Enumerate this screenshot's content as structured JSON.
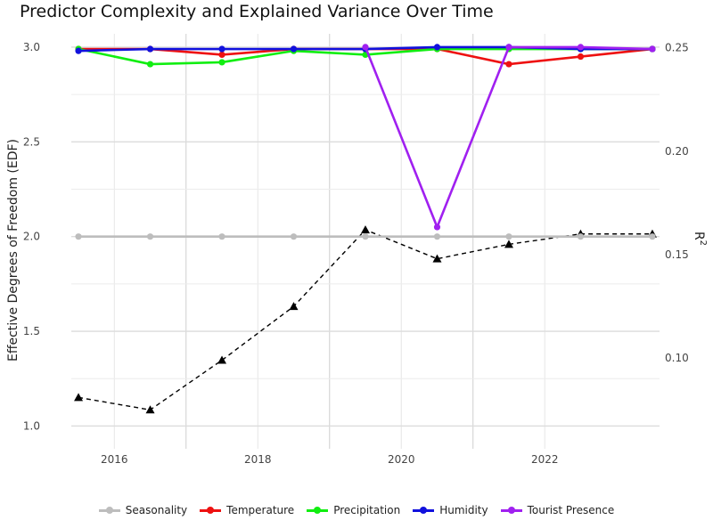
{
  "chart_data": {
    "type": "line",
    "title": "Predictor Complexity and Explained Variance Over Time",
    "ylabel": "Effective Degrees of Freedom (EDF)",
    "y2label_base": "R",
    "y2label_sup": "2",
    "xlim": [
      2015.4,
      2023.6
    ],
    "ylim": [
      0.88,
      3.07
    ],
    "y2lim": [
      0.0562,
      0.2567
    ],
    "x_ticks": [
      2016,
      2018,
      2020,
      2022
    ],
    "x_tick_labels": [
      "2016",
      "2018",
      "2020",
      "2022"
    ],
    "y_ticks": [
      1.0,
      1.5,
      2.0,
      2.5,
      3.0
    ],
    "y_tick_labels": [
      "1.0",
      "1.5",
      "2.0",
      "2.5",
      "3.0"
    ],
    "y2_ticks": [
      0.1,
      0.15,
      0.2,
      0.25
    ],
    "y2_tick_labels": [
      "0.10",
      "0.15",
      "0.20",
      "0.25"
    ],
    "x": [
      2015.5,
      2016.5,
      2017.5,
      2018.5,
      2019.5,
      2020.5,
      2021.5,
      2022.5,
      2023.5
    ],
    "series": [
      {
        "name": "Seasonality",
        "color": "#bdbdbd",
        "values": [
          2.0,
          2.0,
          2.0,
          2.0,
          2.0,
          2.0,
          2.0,
          2.0,
          2.0
        ]
      },
      {
        "name": "Temperature",
        "color": "#ee1111",
        "values": [
          2.99,
          2.99,
          2.96,
          2.99,
          2.99,
          2.99,
          2.91,
          2.95,
          2.99
        ]
      },
      {
        "name": "Precipitation",
        "color": "#11ee11",
        "values": [
          2.99,
          2.91,
          2.92,
          2.98,
          2.96,
          2.99,
          2.99,
          2.99,
          2.99
        ]
      },
      {
        "name": "Humidity",
        "color": "#1111dd",
        "values": [
          2.98,
          2.99,
          2.99,
          2.99,
          2.99,
          3.0,
          3.0,
          2.99,
          2.99
        ]
      },
      {
        "name": "Tourist Presence",
        "color": "#a020f0",
        "values": [
          null,
          null,
          null,
          null,
          3.0,
          2.05,
          3.0,
          3.0,
          2.99
        ]
      }
    ],
    "r2_series": {
      "marker": "triangle",
      "style": "dashed",
      "color": "#000000",
      "values": [
        0.081,
        0.075,
        0.099,
        0.125,
        0.162,
        0.148,
        0.155,
        0.16,
        0.16
      ]
    },
    "legend_position": "bottom",
    "grid": true
  }
}
